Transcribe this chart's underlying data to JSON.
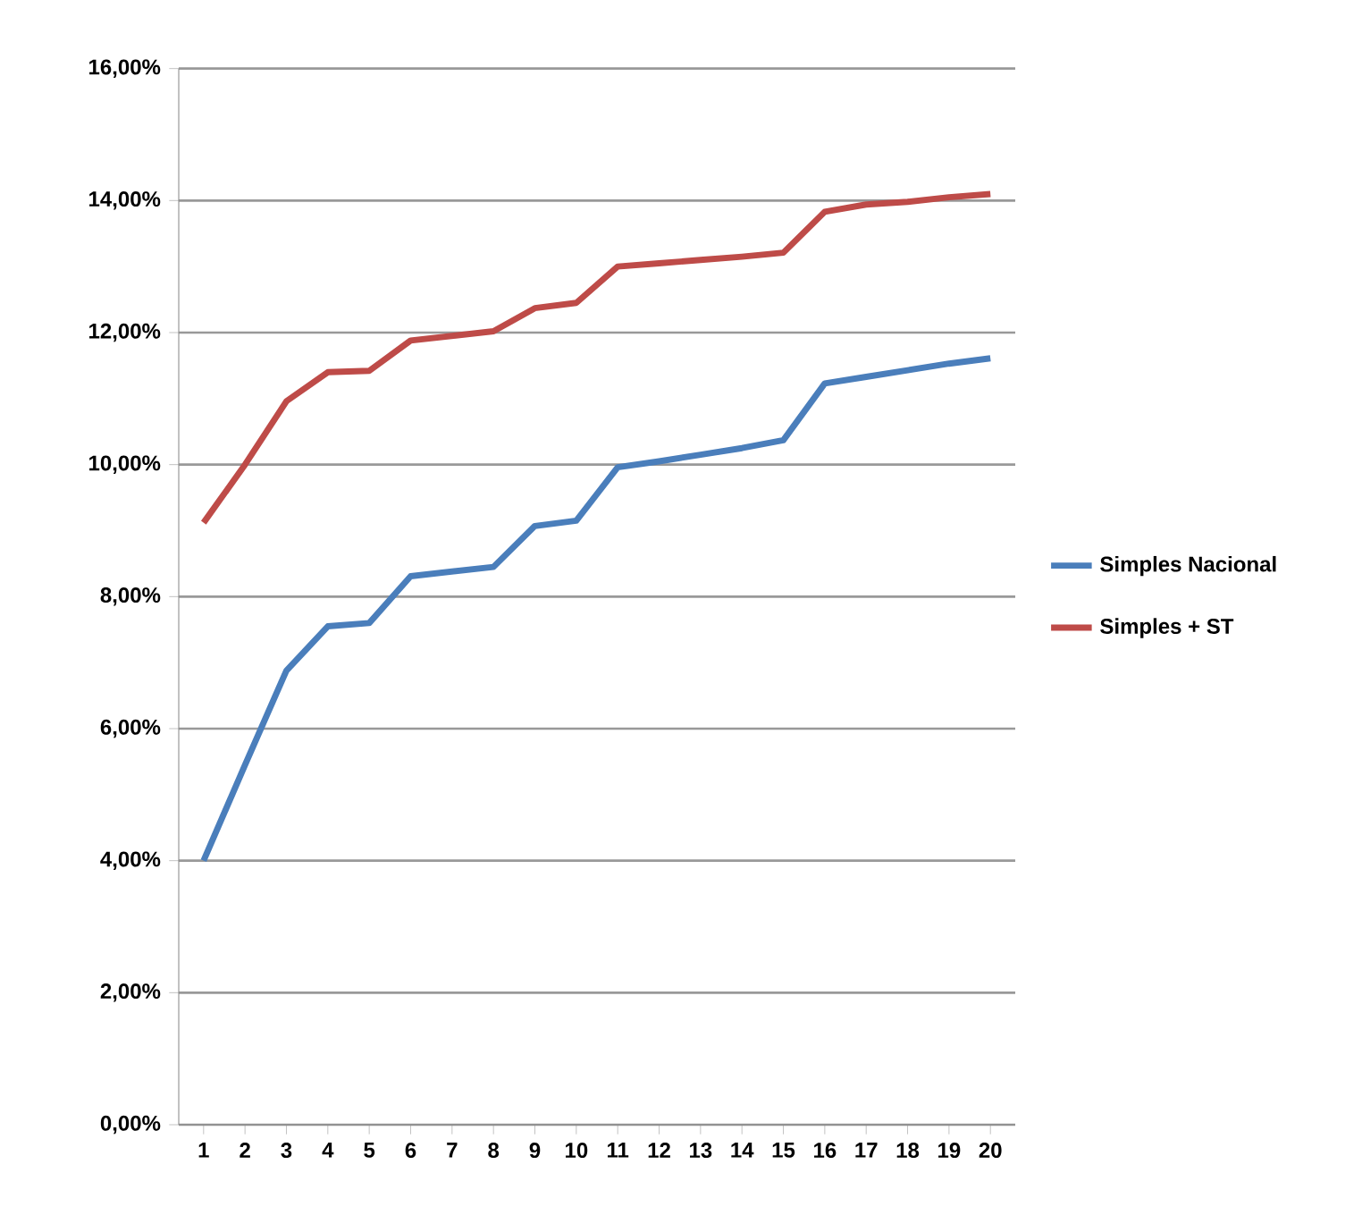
{
  "chart_data": {
    "type": "line",
    "categories": [
      "1",
      "2",
      "3",
      "4",
      "5",
      "6",
      "7",
      "8",
      "9",
      "10",
      "11",
      "12",
      "13",
      "14",
      "15",
      "16",
      "17",
      "18",
      "19",
      "20"
    ],
    "series": [
      {
        "name": "Simples Nacional",
        "color": "#4a7ebb",
        "values": [
          4.0,
          5.45,
          6.88,
          7.55,
          7.6,
          8.31,
          8.38,
          8.45,
          9.07,
          9.15,
          9.96,
          10.05,
          10.15,
          10.25,
          10.37,
          11.23,
          11.33,
          11.43,
          11.53,
          11.61
        ]
      },
      {
        "name": "Simples + ST",
        "color": "#be4b48",
        "values": [
          9.12,
          10.0,
          10.96,
          11.4,
          11.42,
          11.88,
          11.95,
          12.02,
          12.37,
          12.45,
          13.0,
          13.05,
          13.1,
          13.15,
          13.21,
          13.83,
          13.94,
          13.98,
          14.05,
          14.1
        ]
      }
    ],
    "ylim": [
      0,
      16
    ],
    "yticks": [
      {
        "value": 0,
        "label": "0,00%"
      },
      {
        "value": 2,
        "label": "2,00%"
      },
      {
        "value": 4,
        "label": "4,00%"
      },
      {
        "value": 6,
        "label": "6,00%"
      },
      {
        "value": 8,
        "label": "8,00%"
      },
      {
        "value": 10,
        "label": "10,00%"
      },
      {
        "value": 12,
        "label": "12,00%"
      },
      {
        "value": 14,
        "label": "14,00%"
      },
      {
        "value": 16,
        "label": "16,00%"
      }
    ],
    "grid": "y",
    "legend": "right",
    "marker": "none",
    "line_style": "solid"
  }
}
